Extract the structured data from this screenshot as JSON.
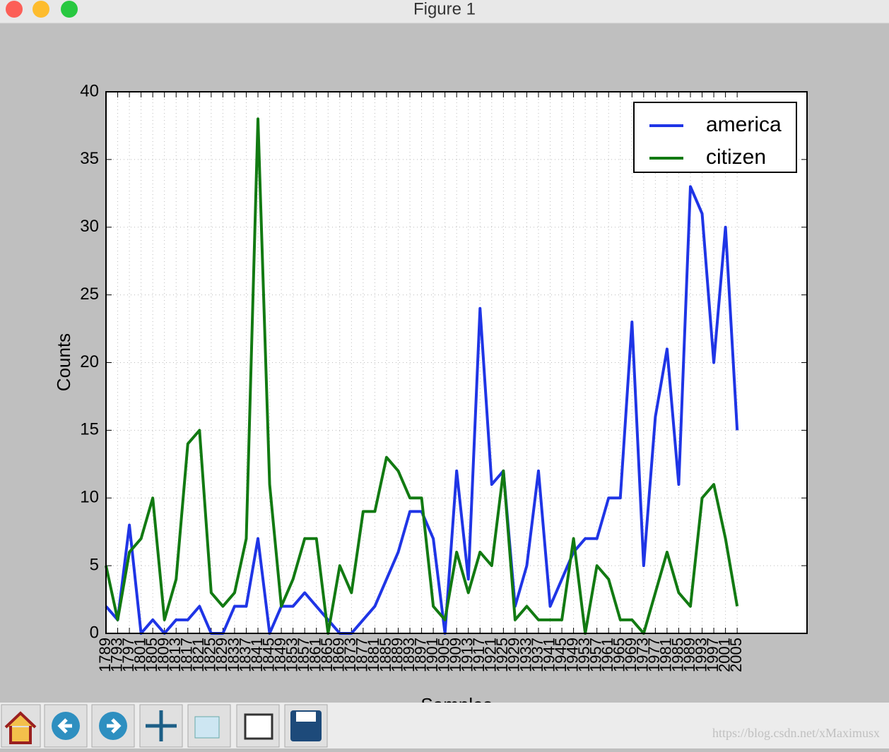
{
  "window": {
    "title": "Figure 1",
    "watermark": "https://blog.csdn.net/xMaximusx"
  },
  "chart_data": {
    "type": "line",
    "xlabel": "Samples",
    "ylabel": "Counts",
    "categories": [
      "1789",
      "1793",
      "1797",
      "1801",
      "1805",
      "1809",
      "1813",
      "1817",
      "1821",
      "1825",
      "1829",
      "1833",
      "1837",
      "1841",
      "1845",
      "1849",
      "1853",
      "1857",
      "1861",
      "1865",
      "1869",
      "1873",
      "1877",
      "1881",
      "1885",
      "1889",
      "1893",
      "1897",
      "1901",
      "1905",
      "1909",
      "1913",
      "1917",
      "1921",
      "1925",
      "1929",
      "1933",
      "1937",
      "1941",
      "1945",
      "1949",
      "1953",
      "1957",
      "1961",
      "1965",
      "1969",
      "1973",
      "1977",
      "1981",
      "1985",
      "1989",
      "1993",
      "1997",
      "2001",
      "2005"
    ],
    "series": [
      {
        "name": "america",
        "color": "#1f35e6",
        "values": [
          2,
          1,
          8,
          0,
          1,
          0,
          1,
          1,
          2,
          0,
          0,
          2,
          2,
          7,
          0,
          2,
          2,
          3,
          2,
          1,
          0,
          0,
          1,
          2,
          4,
          6,
          9,
          9,
          7,
          0,
          12,
          4,
          24,
          11,
          12,
          2,
          5,
          12,
          2,
          4,
          6,
          7,
          7,
          10,
          10,
          23,
          5,
          16,
          21,
          11,
          33,
          31,
          20,
          30,
          15
        ]
      },
      {
        "name": "citizen",
        "color": "#127a12",
        "values": [
          5,
          1,
          6,
          7,
          10,
          1,
          4,
          14,
          15,
          3,
          2,
          3,
          7,
          38,
          11,
          2,
          4,
          7,
          7,
          0,
          5,
          3,
          9,
          9,
          13,
          12,
          10,
          10,
          2,
          1,
          6,
          3,
          6,
          5,
          12,
          1,
          2,
          1,
          1,
          1,
          7,
          0,
          5,
          4,
          1,
          1,
          0,
          3,
          6,
          3,
          2,
          10,
          11,
          7,
          2
        ]
      }
    ],
    "ylim": [
      0,
      40
    ],
    "yticks": [
      0,
      5,
      10,
      15,
      20,
      25,
      30,
      35,
      40
    ],
    "grid": true,
    "legend": "upper right"
  }
}
